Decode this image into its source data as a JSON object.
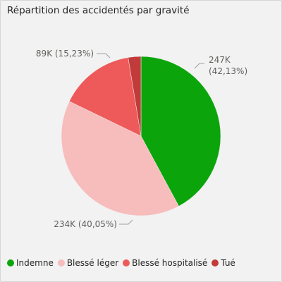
{
  "header": {
    "title": "Répartition des accidentés par gravité"
  },
  "chart_data": {
    "type": "pie",
    "title": "Répartition des accidentés par gravité",
    "slices": [
      {
        "name": "Indemne",
        "value": 247,
        "percent": 42.13,
        "label": "247K",
        "pct_label": "(42,13%)",
        "color": "#0ba50b"
      },
      {
        "name": "Blessé léger",
        "value": 234,
        "percent": 40.05,
        "label": "234K (40,05%)",
        "color": "#f7bcbc"
      },
      {
        "name": "Blessé hospitalisé",
        "value": 89,
        "percent": 15.23,
        "label": "89K (15,23%)",
        "color": "#ee5a5a"
      },
      {
        "name": "Tué",
        "value": 16,
        "percent": 2.59,
        "label": "",
        "color": "#c23b3b"
      }
    ],
    "legend_position": "bottom-left"
  }
}
